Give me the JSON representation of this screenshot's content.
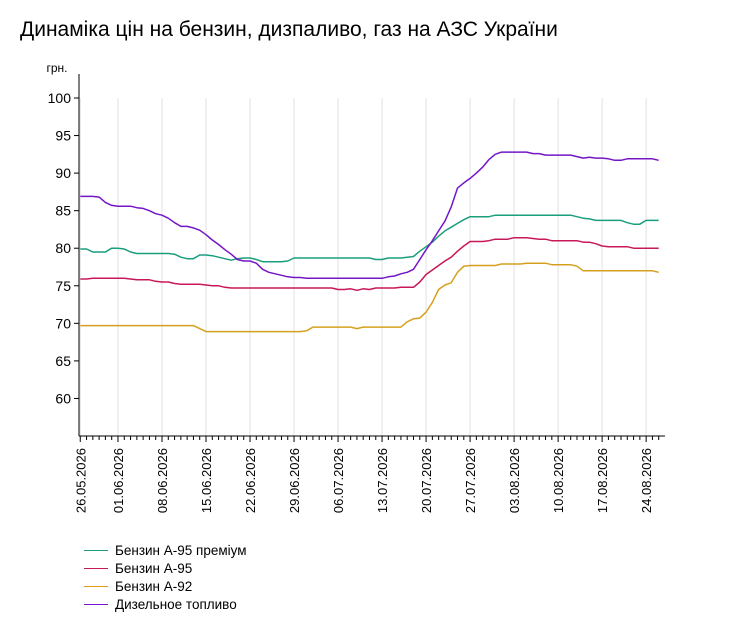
{
  "title": "Динаміка цін на бензин, дизпаливо, газ на АЗС України",
  "chart_data": {
    "type": "line",
    "title": "Динаміка цін на бензин, дизпаливо, газ на АЗС України",
    "ylabel": "грн.",
    "xlabel": "",
    "ylim": [
      55,
      100
    ],
    "y_ticks": [
      "60",
      "65",
      "70",
      "75",
      "80",
      "85",
      "90",
      "95",
      "100"
    ],
    "x_ticks": [
      "26.05.2026",
      "01.06.2026",
      "08.06.2026",
      "15.06.2026",
      "22.06.2026",
      "29.06.2026",
      "06.07.2026",
      "13.07.2026",
      "20.07.2026",
      "27.07.2026",
      "03.08.2026",
      "10.08.2026",
      "17.08.2026",
      "24.08.2026"
    ],
    "x_day_offsets": [
      0,
      6,
      13,
      20,
      27,
      34,
      41,
      48,
      55,
      62,
      69,
      76,
      83,
      90
    ],
    "x_range_days": [
      -0.2,
      93.0
    ],
    "grid": "vertical",
    "legend_position": "bottom-left",
    "series": [
      {
        "name": "Бензин А-95 преміум",
        "color": "#1a9e7e",
        "points": [
          [
            0,
            79.9
          ],
          [
            1,
            79.9
          ],
          [
            2,
            79.5
          ],
          [
            3,
            79.5
          ],
          [
            4,
            79.5
          ],
          [
            5,
            80.0
          ],
          [
            6,
            80.0
          ],
          [
            7,
            79.9
          ],
          [
            8,
            79.5
          ],
          [
            9,
            79.3
          ],
          [
            10,
            79.3
          ],
          [
            12,
            79.3
          ],
          [
            14,
            79.3
          ],
          [
            15,
            79.2
          ],
          [
            16,
            78.8
          ],
          [
            17,
            78.6
          ],
          [
            18,
            78.6
          ],
          [
            19,
            79.1
          ],
          [
            20,
            79.1
          ],
          [
            21,
            79.0
          ],
          [
            22,
            78.8
          ],
          [
            23,
            78.6
          ],
          [
            24,
            78.4
          ],
          [
            25,
            78.6
          ],
          [
            26,
            78.7
          ],
          [
            27,
            78.7
          ],
          [
            28,
            78.5
          ],
          [
            29,
            78.2
          ],
          [
            30,
            78.2
          ],
          [
            31,
            78.2
          ],
          [
            32,
            78.2
          ],
          [
            33,
            78.3
          ],
          [
            34,
            78.7
          ],
          [
            35,
            78.7
          ],
          [
            37,
            78.7
          ],
          [
            40,
            78.7
          ],
          [
            42,
            78.7
          ],
          [
            44,
            78.7
          ],
          [
            46,
            78.7
          ],
          [
            47,
            78.5
          ],
          [
            48,
            78.5
          ],
          [
            49,
            78.7
          ],
          [
            50,
            78.7
          ],
          [
            51,
            78.7
          ],
          [
            52,
            78.8
          ],
          [
            53,
            78.9
          ],
          [
            54,
            79.6
          ],
          [
            55,
            80.2
          ],
          [
            56,
            80.8
          ],
          [
            57,
            81.6
          ],
          [
            58,
            82.3
          ],
          [
            59,
            82.8
          ],
          [
            60,
            83.3
          ],
          [
            61,
            83.8
          ],
          [
            62,
            84.2
          ],
          [
            63,
            84.2
          ],
          [
            65,
            84.2
          ],
          [
            66,
            84.4
          ],
          [
            68,
            84.4
          ],
          [
            72,
            84.4
          ],
          [
            76,
            84.4
          ],
          [
            78,
            84.4
          ],
          [
            79,
            84.2
          ],
          [
            80,
            84.0
          ],
          [
            81,
            83.9
          ],
          [
            82,
            83.7
          ],
          [
            83,
            83.7
          ],
          [
            85,
            83.7
          ],
          [
            86,
            83.7
          ],
          [
            87,
            83.4
          ],
          [
            88,
            83.2
          ],
          [
            89,
            83.2
          ],
          [
            90,
            83.7
          ],
          [
            91,
            83.7
          ],
          [
            92,
            83.7
          ]
        ]
      },
      {
        "name": "Бензин А-95",
        "color": "#c8185a",
        "points": [
          [
            0,
            75.9
          ],
          [
            1,
            75.9
          ],
          [
            2,
            76.0
          ],
          [
            3,
            76.0
          ],
          [
            4,
            76.0
          ],
          [
            5,
            76.0
          ],
          [
            6,
            76.0
          ],
          [
            7,
            76.0
          ],
          [
            8,
            75.9
          ],
          [
            9,
            75.8
          ],
          [
            10,
            75.8
          ],
          [
            11,
            75.8
          ],
          [
            12,
            75.6
          ],
          [
            13,
            75.5
          ],
          [
            14,
            75.5
          ],
          [
            15,
            75.3
          ],
          [
            16,
            75.2
          ],
          [
            17,
            75.2
          ],
          [
            18,
            75.2
          ],
          [
            19,
            75.2
          ],
          [
            20,
            75.1
          ],
          [
            21,
            75.0
          ],
          [
            22,
            75.0
          ],
          [
            23,
            74.8
          ],
          [
            24,
            74.7
          ],
          [
            25,
            74.7
          ],
          [
            30,
            74.7
          ],
          [
            35,
            74.7
          ],
          [
            40,
            74.7
          ],
          [
            41,
            74.5
          ],
          [
            42,
            74.5
          ],
          [
            43,
            74.6
          ],
          [
            44,
            74.4
          ],
          [
            45,
            74.6
          ],
          [
            46,
            74.5
          ],
          [
            47,
            74.7
          ],
          [
            48,
            74.7
          ],
          [
            49,
            74.7
          ],
          [
            50,
            74.7
          ],
          [
            51,
            74.8
          ],
          [
            52,
            74.8
          ],
          [
            53,
            74.8
          ],
          [
            54,
            75.5
          ],
          [
            55,
            76.5
          ],
          [
            56,
            77.1
          ],
          [
            57,
            77.7
          ],
          [
            58,
            78.3
          ],
          [
            59,
            78.8
          ],
          [
            60,
            79.6
          ],
          [
            61,
            80.3
          ],
          [
            62,
            80.9
          ],
          [
            63,
            80.9
          ],
          [
            64,
            80.9
          ],
          [
            65,
            81.0
          ],
          [
            66,
            81.2
          ],
          [
            67,
            81.2
          ],
          [
            68,
            81.2
          ],
          [
            69,
            81.4
          ],
          [
            70,
            81.4
          ],
          [
            71,
            81.4
          ],
          [
            72,
            81.3
          ],
          [
            73,
            81.2
          ],
          [
            74,
            81.2
          ],
          [
            75,
            81.0
          ],
          [
            76,
            81.0
          ],
          [
            77,
            81.0
          ],
          [
            78,
            81.0
          ],
          [
            79,
            81.0
          ],
          [
            80,
            80.8
          ],
          [
            81,
            80.8
          ],
          [
            82,
            80.6
          ],
          [
            83,
            80.3
          ],
          [
            84,
            80.2
          ],
          [
            85,
            80.2
          ],
          [
            86,
            80.2
          ],
          [
            87,
            80.2
          ],
          [
            88,
            80.0
          ],
          [
            89,
            80.0
          ],
          [
            90,
            80.0
          ],
          [
            91,
            80.0
          ],
          [
            92,
            80.0
          ]
        ]
      },
      {
        "name": "Бензин А-92",
        "color": "#d6a01e",
        "points": [
          [
            0,
            69.7
          ],
          [
            5,
            69.7
          ],
          [
            10,
            69.7
          ],
          [
            15,
            69.7
          ],
          [
            18,
            69.7
          ],
          [
            19,
            69.3
          ],
          [
            20,
            68.9
          ],
          [
            21,
            68.9
          ],
          [
            25,
            68.9
          ],
          [
            30,
            68.9
          ],
          [
            35,
            68.9
          ],
          [
            36,
            69.0
          ],
          [
            37,
            69.5
          ],
          [
            38,
            69.5
          ],
          [
            41,
            69.5
          ],
          [
            43,
            69.5
          ],
          [
            44,
            69.3
          ],
          [
            45,
            69.5
          ],
          [
            46,
            69.5
          ],
          [
            49,
            69.5
          ],
          [
            51,
            69.5
          ],
          [
            52,
            70.2
          ],
          [
            53,
            70.6
          ],
          [
            54,
            70.7
          ],
          [
            55,
            71.5
          ],
          [
            56,
            72.8
          ],
          [
            57,
            74.5
          ],
          [
            58,
            75.1
          ],
          [
            59,
            75.4
          ],
          [
            60,
            76.8
          ],
          [
            61,
            77.6
          ],
          [
            62,
            77.7
          ],
          [
            63,
            77.7
          ],
          [
            65,
            77.7
          ],
          [
            66,
            77.7
          ],
          [
            67,
            77.9
          ],
          [
            68,
            77.9
          ],
          [
            70,
            77.9
          ],
          [
            71,
            78.0
          ],
          [
            72,
            78.0
          ],
          [
            74,
            78.0
          ],
          [
            75,
            77.8
          ],
          [
            76,
            77.8
          ],
          [
            78,
            77.8
          ],
          [
            79,
            77.6
          ],
          [
            80,
            77.0
          ],
          [
            81,
            77.0
          ],
          [
            85,
            77.0
          ],
          [
            88,
            77.0
          ],
          [
            89,
            77.0
          ],
          [
            91,
            77.0
          ],
          [
            92,
            76.8
          ]
        ]
      },
      {
        "name": "Дизельное топливо",
        "color": "#7416c8",
        "points": [
          [
            0,
            86.9
          ],
          [
            1,
            86.9
          ],
          [
            2,
            86.9
          ],
          [
            3,
            86.8
          ],
          [
            4,
            86.1
          ],
          [
            5,
            85.7
          ],
          [
            6,
            85.6
          ],
          [
            7,
            85.6
          ],
          [
            8,
            85.6
          ],
          [
            9,
            85.4
          ],
          [
            10,
            85.3
          ],
          [
            11,
            85.0
          ],
          [
            12,
            84.6
          ],
          [
            13,
            84.4
          ],
          [
            14,
            84.0
          ],
          [
            15,
            83.4
          ],
          [
            16,
            82.9
          ],
          [
            17,
            82.9
          ],
          [
            18,
            82.7
          ],
          [
            19,
            82.4
          ],
          [
            20,
            81.8
          ],
          [
            21,
            81.1
          ],
          [
            22,
            80.5
          ],
          [
            23,
            79.8
          ],
          [
            24,
            79.2
          ],
          [
            25,
            78.5
          ],
          [
            26,
            78.3
          ],
          [
            27,
            78.3
          ],
          [
            28,
            78.0
          ],
          [
            29,
            77.2
          ],
          [
            30,
            76.8
          ],
          [
            31,
            76.6
          ],
          [
            32,
            76.4
          ],
          [
            33,
            76.2
          ],
          [
            34,
            76.1
          ],
          [
            35,
            76.1
          ],
          [
            36,
            76.0
          ],
          [
            40,
            76.0
          ],
          [
            45,
            76.0
          ],
          [
            48,
            76.0
          ],
          [
            49,
            76.2
          ],
          [
            50,
            76.3
          ],
          [
            51,
            76.6
          ],
          [
            52,
            76.8
          ],
          [
            53,
            77.2
          ],
          [
            54,
            78.5
          ],
          [
            55,
            79.8
          ],
          [
            56,
            81.0
          ],
          [
            57,
            82.3
          ],
          [
            58,
            83.6
          ],
          [
            59,
            85.5
          ],
          [
            60,
            88.0
          ],
          [
            61,
            88.7
          ],
          [
            62,
            89.3
          ],
          [
            63,
            90.0
          ],
          [
            64,
            90.8
          ],
          [
            65,
            91.8
          ],
          [
            66,
            92.5
          ],
          [
            67,
            92.8
          ],
          [
            68,
            92.8
          ],
          [
            70,
            92.8
          ],
          [
            71,
            92.8
          ],
          [
            72,
            92.6
          ],
          [
            73,
            92.6
          ],
          [
            74,
            92.4
          ],
          [
            76,
            92.4
          ],
          [
            77,
            92.4
          ],
          [
            78,
            92.4
          ],
          [
            79,
            92.2
          ],
          [
            80,
            92.0
          ],
          [
            81,
            92.1
          ],
          [
            82,
            92.0
          ],
          [
            83,
            92.0
          ],
          [
            84,
            91.9
          ],
          [
            85,
            91.7
          ],
          [
            86,
            91.7
          ],
          [
            87,
            91.9
          ],
          [
            88,
            91.9
          ],
          [
            89,
            91.9
          ],
          [
            90,
            91.9
          ],
          [
            91,
            91.9
          ],
          [
            92,
            91.7
          ]
        ]
      }
    ]
  }
}
